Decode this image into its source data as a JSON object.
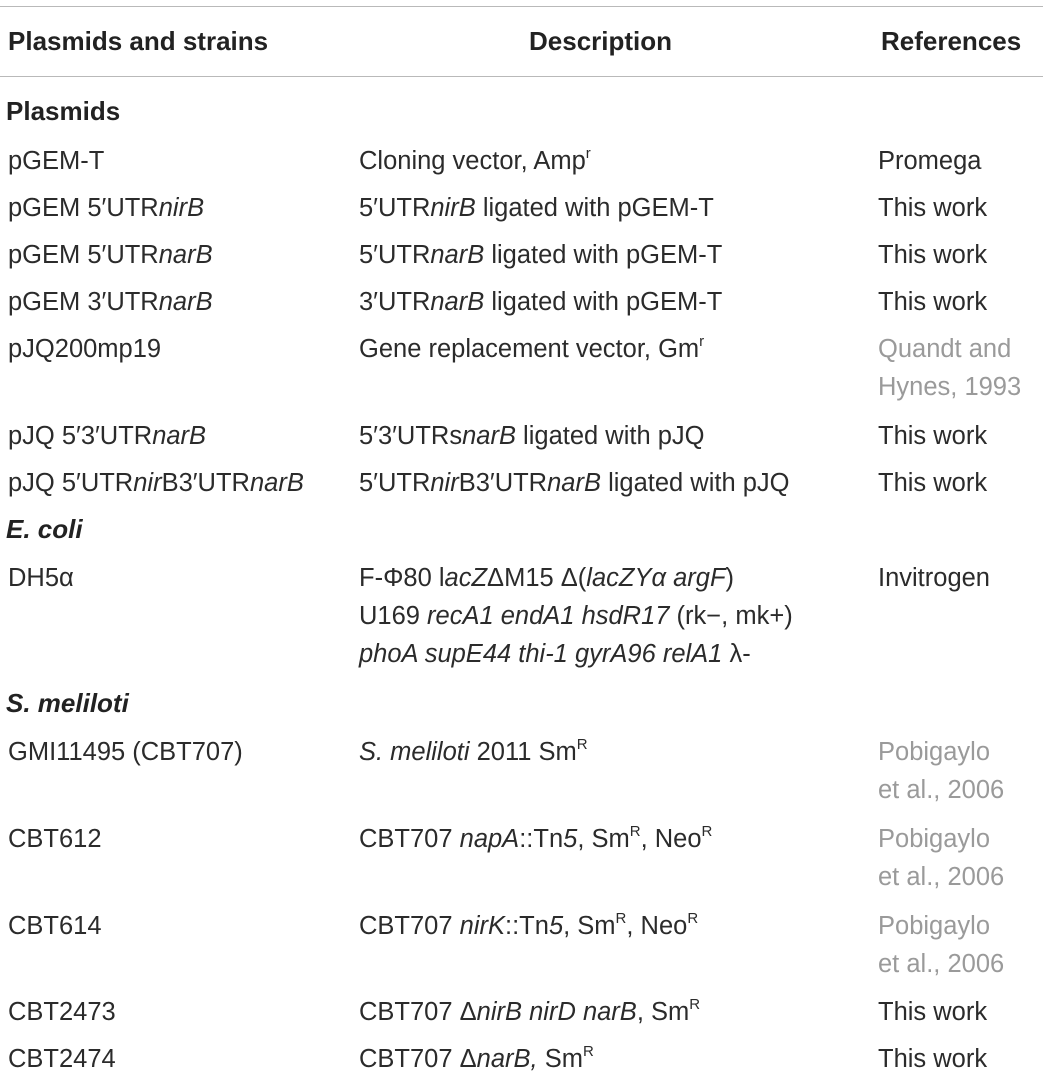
{
  "headers": {
    "col1": "Plasmids and strains",
    "col2": "Description",
    "col3": "References"
  },
  "sections": {
    "plasmids": "Plasmids",
    "ecoli": "E. coli",
    "smeliloti": "S. meliloti"
  },
  "rows": {
    "pgemt": {
      "name": "pGEM-T",
      "desc_a": "Cloning vector, Amp",
      "desc_sup": "r",
      "ref": "Promega"
    },
    "pgem5nirB": {
      "name_a": "pGEM 5′UTR",
      "name_i": "nirB",
      "desc_i": "5′UTR",
      "desc_it": "nirB",
      "desc_b": " ligated with pGEM-T",
      "ref": "This work"
    },
    "pgem5narB": {
      "name_a": "pGEM 5′UTR",
      "name_i": "narB",
      "desc_a": "5′UTR",
      "desc_i": "narB",
      "desc_b": " ligated with pGEM-T",
      "ref": "This work"
    },
    "pgem3narB": {
      "name_a": "pGEM 3′UTR",
      "name_i": "narB",
      "desc_a": "3′UTR",
      "desc_i": "narB",
      "desc_b": " ligated with pGEM-T",
      "ref": "This work"
    },
    "pjq200": {
      "name": "pJQ200mp19",
      "desc_a": "Gene replacement vector, Gm",
      "desc_sup": "r",
      "ref1": "Quandt and",
      "ref2": "Hynes, 1993"
    },
    "pjq53": {
      "name_a": "pJQ 5′3′UTR",
      "name_i": "narB",
      "desc_a": "5′3′UTRs",
      "desc_i": "narB",
      "desc_b": " ligated with pJQ",
      "ref": "This work"
    },
    "pjq5nir3nar": {
      "name_a": "pJQ 5′UTR",
      "name_i1": "nir",
      "name_b": "B3′UTR",
      "name_i2": "narB",
      "desc_a": "5′UTR",
      "desc_i1": "nir",
      "desc_b": "B3′UTR",
      "desc_i2": "narB",
      "desc_c": " ligated with pJQ",
      "ref": "This work"
    },
    "dh5a": {
      "name": "DH5α",
      "l1_a": "F-Φ80 l",
      "l1_i1": "acZ",
      "l1_b": "ΔM15 Δ(",
      "l1_i2": "lacZYα argF",
      "l1_c": ")",
      "l2_a": "U169 ",
      "l2_i": "recA1 endA1 hsdR17",
      "l2_b": " (rk−, mk+)",
      "l3_i": "phoA supE44 thi-1 gyrA96 relA1",
      "l3_b": " λ-",
      "ref": "Invitrogen"
    },
    "gmi": {
      "name": "GMI11495 (CBT707)",
      "desc_i": "S. meliloti",
      "desc_a": " 2011 Sm",
      "desc_sup": "R",
      "ref1": "Pobigaylo",
      "ref2": "et al., 2006"
    },
    "cbt612": {
      "name": "CBT612",
      "desc_a": "CBT707 ",
      "desc_i": "napA",
      "desc_b": "::Tn",
      "desc_i2": "5",
      "desc_c": ", Sm",
      "desc_sup1": "R",
      "desc_d": ", Neo",
      "desc_sup2": "R",
      "ref1": "Pobigaylo",
      "ref2": "et al., 2006"
    },
    "cbt614": {
      "name": "CBT614",
      "desc_a": "CBT707 ",
      "desc_i": "nirK",
      "desc_b": "::Tn",
      "desc_i2": "5",
      "desc_c": ", Sm",
      "desc_sup1": "R",
      "desc_d": ", Neo",
      "desc_sup2": "R",
      "ref1": "Pobigaylo",
      "ref2": "et al., 2006"
    },
    "cbt2473": {
      "name": "CBT2473",
      "desc_a": "CBT707 Δ",
      "desc_i": "nirB nirD narB",
      "desc_b": ", Sm",
      "desc_sup": "R",
      "ref": "This work"
    },
    "cbt2474": {
      "name": "CBT2474",
      "desc_a": "CBT707 Δ",
      "desc_i": "narB,",
      "desc_b": " Sm",
      "desc_sup": "R",
      "ref": "This work"
    }
  }
}
